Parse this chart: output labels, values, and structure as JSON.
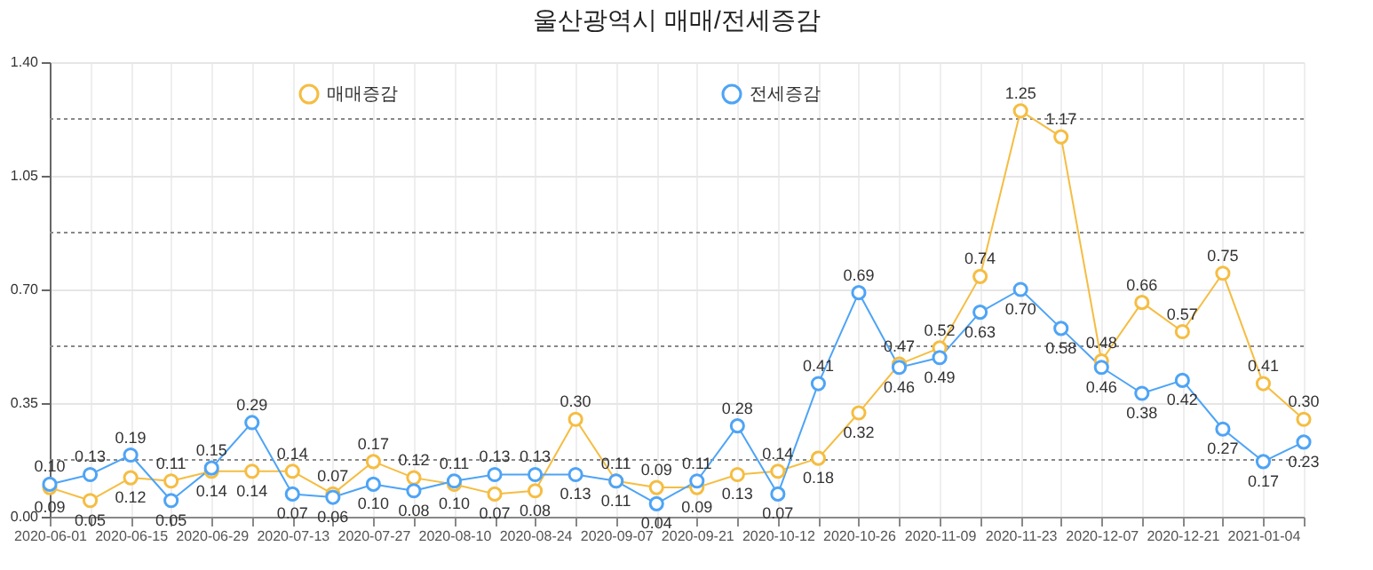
{
  "chart_data": {
    "type": "line",
    "title": "울산광역시 매매/전세증감",
    "categories": [
      "2020-06-01",
      null,
      "2020-06-15",
      null,
      "2020-06-29",
      null,
      "2020-07-13",
      null,
      "2020-07-27",
      null,
      "2020-08-10",
      null,
      "2020-08-24",
      null,
      "2020-09-07",
      null,
      "2020-09-21",
      null,
      "2020-10-12",
      null,
      "2020-10-26",
      null,
      "2020-11-09",
      null,
      "2020-11-23",
      null,
      "2020-12-07",
      null,
      "2020-12-21",
      null,
      "2021-01-04",
      null
    ],
    "series": [
      {
        "name": "매매증감",
        "color": "#f5bd42",
        "values": [
          0.09,
          0.05,
          0.12,
          0.11,
          0.14,
          0.14,
          0.14,
          0.07,
          0.17,
          0.12,
          0.1,
          0.07,
          0.08,
          0.3,
          0.11,
          0.09,
          0.09,
          0.13,
          0.14,
          0.18,
          0.32,
          0.47,
          0.52,
          0.74,
          1.25,
          1.17,
          0.48,
          0.66,
          0.57,
          0.75,
          0.41,
          0.3
        ],
        "value_labels": [
          "0.09",
          "0.05",
          "0.12",
          "0.11",
          "0.14",
          "0.14",
          "0.14",
          "0.07",
          "0.17",
          "0.12",
          "0.10",
          "0.07",
          "0.08",
          "0.30",
          "0.11",
          "0.09",
          "0.09",
          "0.13",
          "0.14",
          "0.18",
          "0.32",
          "0.47",
          "0.52",
          "0.74",
          "1.25",
          "1.17",
          "0.48",
          "0.66",
          "0.57",
          "0.75",
          "0.41",
          "0.30"
        ]
      },
      {
        "name": "전세증감",
        "color": "#4ea4f6",
        "values": [
          0.1,
          0.13,
          0.19,
          0.05,
          0.15,
          0.29,
          0.07,
          0.06,
          0.1,
          0.08,
          0.11,
          0.13,
          0.13,
          0.13,
          0.11,
          0.04,
          0.11,
          0.28,
          0.07,
          0.41,
          0.69,
          0.46,
          0.49,
          0.63,
          0.7,
          0.58,
          0.46,
          0.38,
          0.42,
          0.27,
          0.17,
          0.23
        ],
        "value_labels": [
          "0.10",
          "0.13",
          "0.19",
          "0.05",
          "0.15",
          "0.29",
          "0.07",
          "0.06",
          "0.10",
          "0.08",
          "0.11",
          "0.13",
          "0.13",
          "0.13",
          "0.11",
          "0.04",
          "0.11",
          "0.28",
          "0.07",
          "0.41",
          "0.69",
          "0.46",
          "0.49",
          "0.63",
          "0.70",
          "0.58",
          "0.46",
          "0.38",
          "0.42",
          "0.27",
          "0.17",
          "0.23"
        ]
      }
    ],
    "ylim": [
      0,
      1.4
    ],
    "yticks": [
      {
        "value": 0,
        "label": "0.00"
      },
      {
        "value": 0.175,
        "label": null
      },
      {
        "value": 0.35,
        "label": "0.35"
      },
      {
        "value": 0.525,
        "label": null
      },
      {
        "value": 0.7,
        "label": "0.70"
      },
      {
        "value": 0.875,
        "label": null
      },
      {
        "value": 1.05,
        "label": "1.05"
      },
      {
        "value": 1.225,
        "label": null
      },
      {
        "value": 1.4,
        "label": "1.40"
      }
    ],
    "grid": true,
    "legend": "top",
    "marker": "circle",
    "line_style": "solid"
  }
}
